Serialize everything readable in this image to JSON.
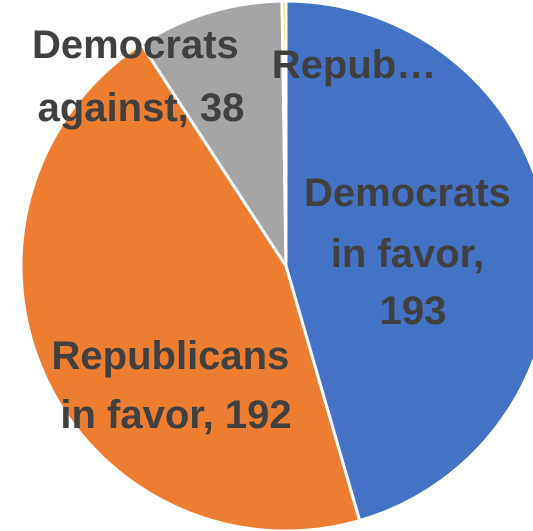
{
  "chart_data": {
    "type": "pie",
    "title": "",
    "start_angle_deg": 0,
    "direction": "clockwise",
    "slices": [
      {
        "label_lines": [
          "Democrats",
          "in favor,",
          "193"
        ],
        "value": 193,
        "color": "#4472C4"
      },
      {
        "label_lines": [
          "Republicans",
          "in favor, 192"
        ],
        "value": 192,
        "color": "#ED7D31"
      },
      {
        "label_lines": [
          "Democrats",
          "against, 38"
        ],
        "value": 38,
        "color": "#A5A5A5"
      },
      {
        "label_lines": [
          "Repub…"
        ],
        "value": 1,
        "color": "#FFC000"
      }
    ]
  }
}
